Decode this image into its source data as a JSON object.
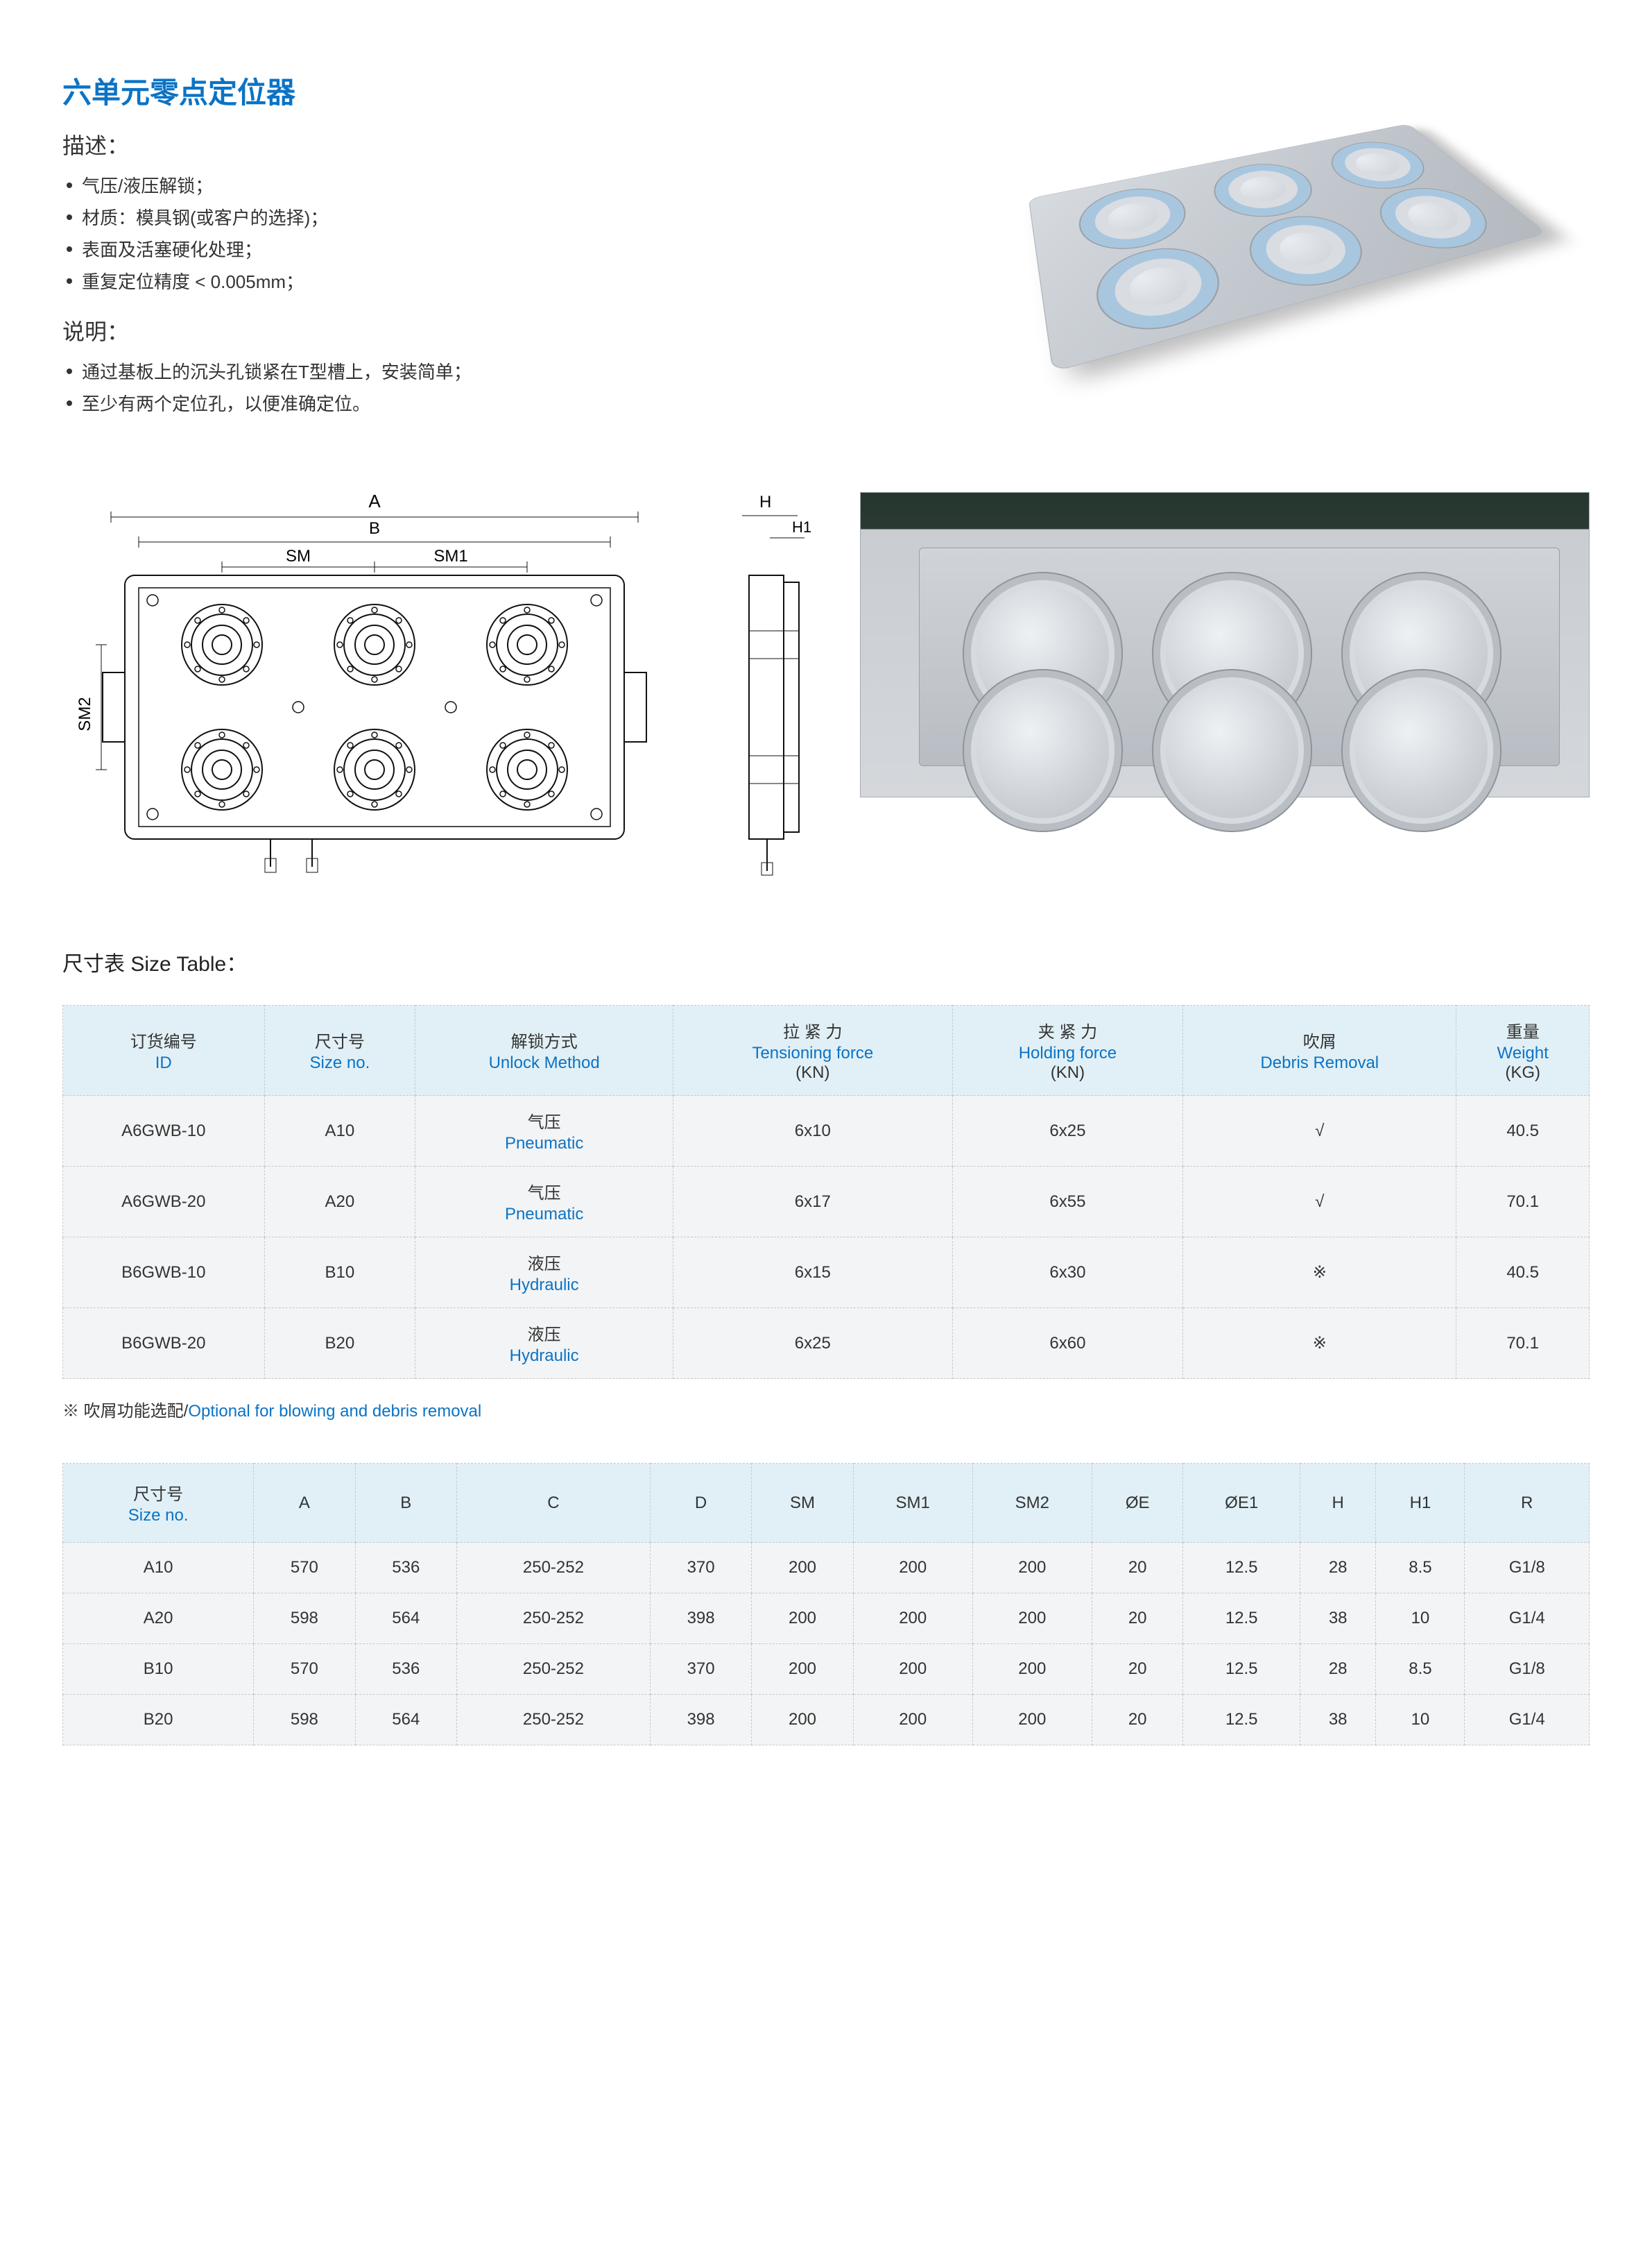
{
  "title": "六单元零点定位器",
  "desc_heading": "描述：",
  "desc_items": [
    "气压/液压解锁；",
    "材质：模具钢(或客户的选择)；",
    "表面及活塞硬化处理；",
    "重复定位精度 < 0.005mm；"
  ],
  "instr_heading": "说明：",
  "instr_items": [
    "通过基板上的沉头孔锁紧在T型槽上，安装简单；",
    "至少有两个定位孔，以便准确定位。"
  ],
  "diagram_labels": {
    "A": "A",
    "B": "B",
    "SM": "SM",
    "SM1": "SM1",
    "SM2": "SM2",
    "H": "H",
    "H1": "H1"
  },
  "size_table_title": "尺寸表 Size Table：",
  "table1": {
    "columns": [
      {
        "cn": "订货编号",
        "en": "ID"
      },
      {
        "cn": "尺寸号",
        "en": "Size no."
      },
      {
        "cn": "解锁方式",
        "en": "Unlock Method"
      },
      {
        "cn": "拉 紧 力",
        "en": "Tensioning force",
        "unit": "(KN)"
      },
      {
        "cn": "夹 紧 力",
        "en": "Holding force",
        "unit": "(KN)"
      },
      {
        "cn": "吹屑",
        "en": "Debris Removal"
      },
      {
        "cn": "重量",
        "en": "Weight",
        "unit": "(KG)"
      }
    ],
    "rows": [
      {
        "id": "A6GWB-10",
        "size": "A10",
        "unlock_cn": "气压",
        "unlock_en": "Pneumatic",
        "tension": "6x10",
        "holding": "6x25",
        "debris": "√",
        "weight": "40.5"
      },
      {
        "id": "A6GWB-20",
        "size": "A20",
        "unlock_cn": "气压",
        "unlock_en": "Pneumatic",
        "tension": "6x17",
        "holding": "6x55",
        "debris": "√",
        "weight": "70.1"
      },
      {
        "id": "B6GWB-10",
        "size": "B10",
        "unlock_cn": "液压",
        "unlock_en": "Hydraulic",
        "tension": "6x15",
        "holding": "6x30",
        "debris": "※",
        "weight": "40.5"
      },
      {
        "id": "B6GWB-20",
        "size": "B20",
        "unlock_cn": "液压",
        "unlock_en": "Hydraulic",
        "tension": "6x25",
        "holding": "6x60",
        "debris": "※",
        "weight": "70.1"
      }
    ]
  },
  "note_cn": "※ 吹屑功能选配/",
  "note_en": "Optional for blowing and debris removal",
  "table2": {
    "columns": [
      {
        "cn": "尺寸号",
        "en": "Size no."
      },
      {
        "label": "A"
      },
      {
        "label": "B"
      },
      {
        "label": "C"
      },
      {
        "label": "D"
      },
      {
        "label": "SM"
      },
      {
        "label": "SM1"
      },
      {
        "label": "SM2"
      },
      {
        "label": "ØE"
      },
      {
        "label": "ØE1"
      },
      {
        "label": "H"
      },
      {
        "label": "H1"
      },
      {
        "label": "R"
      }
    ],
    "rows": [
      {
        "size": "A10",
        "A": "570",
        "B": "536",
        "C": "250-252",
        "D": "370",
        "SM": "200",
        "SM1": "200",
        "SM2": "200",
        "OE": "20",
        "OE1": "12.5",
        "H": "28",
        "H1": "8.5",
        "R": "G1/8"
      },
      {
        "size": "A20",
        "A": "598",
        "B": "564",
        "C": "250-252",
        "D": "398",
        "SM": "200",
        "SM1": "200",
        "SM2": "200",
        "OE": "20",
        "OE1": "12.5",
        "H": "38",
        "H1": "10",
        "R": "G1/4"
      },
      {
        "size": "B10",
        "A": "570",
        "B": "536",
        "C": "250-252",
        "D": "370",
        "SM": "200",
        "SM1": "200",
        "SM2": "200",
        "OE": "20",
        "OE1": "12.5",
        "H": "28",
        "H1": "8.5",
        "R": "G1/8"
      },
      {
        "size": "B20",
        "A": "598",
        "B": "564",
        "C": "250-252",
        "D": "398",
        "SM": "200",
        "SM1": "200",
        "SM2": "200",
        "OE": "20",
        "OE1": "12.5",
        "H": "38",
        "H1": "10",
        "R": "G1/4"
      }
    ]
  },
  "colors": {
    "accent": "#0b73c5",
    "header_bg": "#e1f0f6",
    "row_bg": "#f3f4f5",
    "border": "#c5c9cd",
    "text": "#333333"
  }
}
